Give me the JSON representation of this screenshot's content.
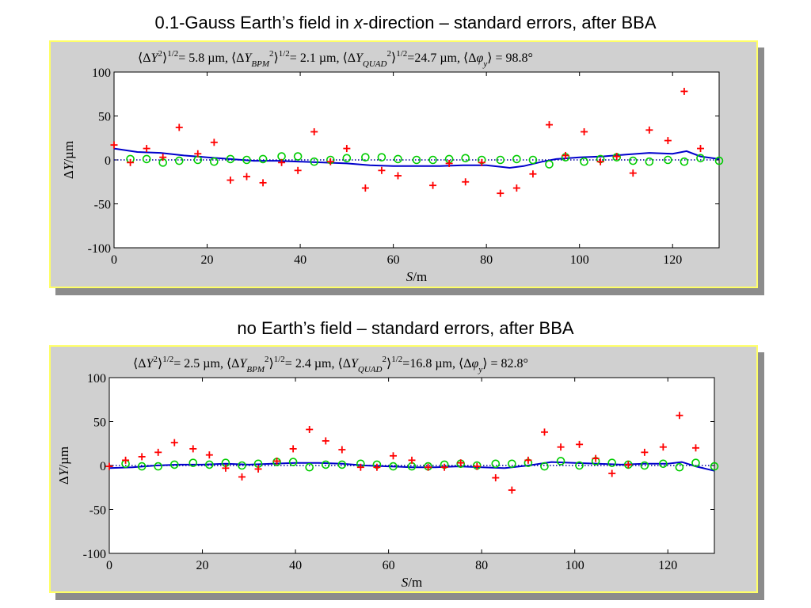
{
  "slide": {
    "title1": "0.1-Gauss Earth’s field in x-direction – standard errors, after BBA",
    "title2": "no Earth’s field – standard errors, after BBA"
  },
  "colors": {
    "line": "#0000cc",
    "cross": "#ff0000",
    "circle": "#00cc00",
    "reference": "#000099"
  },
  "chart_data": [
    {
      "type": "scatter",
      "header": {
        "dy": "⟨ΔY²⟩¹ᐟ²= 5.8 µm,",
        "bpm": "⟨ΔY_BPM²⟩¹ᐟ²= 2.1 µm,",
        "quad": "⟨ΔY_QUAD²⟩¹ᐟ²=24.7 µm,",
        "phi": "⟨Δφ_y⟩ =   98.8°"
      },
      "xlabel": "S/m",
      "ylabel": "ΔY/µm",
      "xlim": [
        0,
        130
      ],
      "ylim": [
        -100,
        100
      ],
      "xticks": [
        0,
        20,
        40,
        60,
        80,
        100,
        120
      ],
      "yticks": [
        100,
        50,
        0,
        -50,
        -100
      ],
      "grid": false,
      "crosses": [
        [
          0,
          17
        ],
        [
          3.5,
          -3
        ],
        [
          7,
          13
        ],
        [
          10.5,
          3
        ],
        [
          14,
          37
        ],
        [
          18,
          7
        ],
        [
          21.5,
          20
        ],
        [
          25,
          -23
        ],
        [
          28.5,
          -19
        ],
        [
          32,
          -26
        ],
        [
          36,
          -3
        ],
        [
          39.5,
          -12
        ],
        [
          43,
          32
        ],
        [
          46.5,
          -2
        ],
        [
          50,
          13
        ],
        [
          54,
          -32
        ],
        [
          57.5,
          -12
        ],
        [
          61,
          -18
        ],
        [
          68.5,
          -29
        ],
        [
          72,
          -4
        ],
        [
          75.5,
          -25
        ],
        [
          79,
          -3
        ],
        [
          83,
          -38
        ],
        [
          86.5,
          -32
        ],
        [
          90,
          -16
        ],
        [
          93.5,
          40
        ],
        [
          97,
          5
        ],
        [
          101,
          32
        ],
        [
          104.5,
          -2
        ],
        [
          108,
          4
        ],
        [
          111.5,
          -15
        ],
        [
          115,
          34
        ],
        [
          119,
          22
        ],
        [
          122.5,
          78
        ],
        [
          126,
          13
        ]
      ],
      "circles": [
        [
          3.5,
          1
        ],
        [
          7,
          1
        ],
        [
          10.5,
          -3
        ],
        [
          14,
          -1
        ],
        [
          18,
          0
        ],
        [
          21.5,
          -2
        ],
        [
          25,
          1
        ],
        [
          28.5,
          0
        ],
        [
          32,
          1
        ],
        [
          36,
          4
        ],
        [
          39.5,
          4
        ],
        [
          43,
          -2
        ],
        [
          46.5,
          0
        ],
        [
          50,
          2
        ],
        [
          54,
          3
        ],
        [
          57.5,
          3
        ],
        [
          61,
          1
        ],
        [
          65,
          0
        ],
        [
          68.5,
          0
        ],
        [
          72,
          1
        ],
        [
          75.5,
          2
        ],
        [
          79,
          0
        ],
        [
          83,
          0
        ],
        [
          86.5,
          1
        ],
        [
          90,
          0
        ],
        [
          93.5,
          -5
        ],
        [
          97,
          3
        ],
        [
          101,
          -2
        ],
        [
          104.5,
          1
        ],
        [
          108,
          3
        ],
        [
          111.5,
          -1
        ],
        [
          115,
          -2
        ],
        [
          119,
          0
        ],
        [
          122.5,
          -2
        ],
        [
          126,
          2
        ],
        [
          130,
          -1
        ]
      ],
      "line": [
        [
          0,
          13
        ],
        [
          5,
          9
        ],
        [
          10,
          8
        ],
        [
          15,
          5
        ],
        [
          20,
          3
        ],
        [
          25,
          1
        ],
        [
          30,
          -1
        ],
        [
          35,
          -1
        ],
        [
          40,
          -2
        ],
        [
          45,
          -3
        ],
        [
          50,
          -4
        ],
        [
          55,
          -6
        ],
        [
          60,
          -7
        ],
        [
          65,
          -7
        ],
        [
          70,
          -7
        ],
        [
          75,
          -6
        ],
        [
          80,
          -6
        ],
        [
          85,
          -9
        ],
        [
          88,
          -7
        ],
        [
          92,
          -2
        ],
        [
          95,
          1
        ],
        [
          100,
          3
        ],
        [
          105,
          4
        ],
        [
          110,
          6
        ],
        [
          115,
          8
        ],
        [
          120,
          7
        ],
        [
          123,
          10
        ],
        [
          126,
          4
        ],
        [
          130,
          1
        ]
      ]
    },
    {
      "type": "scatter",
      "header": {
        "dy": "⟨ΔY²⟩¹ᐟ²= 2.5 µm,",
        "bpm": "⟨ΔY_BPM²⟩¹ᐟ²= 2.4 µm,",
        "quad": "⟨ΔY_QUAD²⟩¹ᐟ²=16.8 µm,",
        "phi": "⟨Δφ_y⟩ =   82.8°"
      },
      "xlabel": "S/m",
      "ylabel": "ΔY/µm",
      "xlim": [
        0,
        130
      ],
      "ylim": [
        -100,
        100
      ],
      "xticks": [
        0,
        20,
        40,
        60,
        80,
        100,
        120
      ],
      "yticks": [
        100,
        50,
        0,
        -50,
        -100
      ],
      "grid": false,
      "crosses": [
        [
          0,
          -1
        ],
        [
          3.5,
          6
        ],
        [
          7,
          10
        ],
        [
          10.5,
          15
        ],
        [
          14,
          26
        ],
        [
          18,
          19
        ],
        [
          21.5,
          12
        ],
        [
          25,
          -3
        ],
        [
          28.5,
          -13
        ],
        [
          32,
          -4
        ],
        [
          36,
          5
        ],
        [
          39.5,
          19
        ],
        [
          43,
          41
        ],
        [
          46.5,
          28
        ],
        [
          50,
          18
        ],
        [
          54,
          -2
        ],
        [
          57.5,
          -2
        ],
        [
          61,
          11
        ],
        [
          65,
          6
        ],
        [
          68.5,
          -2
        ],
        [
          72,
          -2
        ],
        [
          75.5,
          3
        ],
        [
          79,
          -1
        ],
        [
          83,
          -14
        ],
        [
          86.5,
          -28
        ],
        [
          90,
          6
        ],
        [
          93.5,
          38
        ],
        [
          97,
          21
        ],
        [
          101,
          24
        ],
        [
          104.5,
          8
        ],
        [
          108,
          -9
        ],
        [
          111.5,
          1
        ],
        [
          115,
          15
        ],
        [
          119,
          21
        ],
        [
          122.5,
          57
        ],
        [
          126,
          20
        ]
      ],
      "circles": [
        [
          3.5,
          2
        ],
        [
          7,
          -1
        ],
        [
          10.5,
          -1
        ],
        [
          14,
          1
        ],
        [
          18,
          3
        ],
        [
          21.5,
          1
        ],
        [
          25,
          3
        ],
        [
          28.5,
          0
        ],
        [
          32,
          2
        ],
        [
          36,
          4
        ],
        [
          39.5,
          4
        ],
        [
          43,
          -2
        ],
        [
          46.5,
          1
        ],
        [
          50,
          1
        ],
        [
          54,
          2
        ],
        [
          57.5,
          1
        ],
        [
          61,
          -1
        ],
        [
          65,
          -1
        ],
        [
          68.5,
          -1
        ],
        [
          72,
          1
        ],
        [
          75.5,
          2
        ],
        [
          79,
          0
        ],
        [
          83,
          2
        ],
        [
          86.5,
          2
        ],
        [
          90,
          3
        ],
        [
          93.5,
          -1
        ],
        [
          97,
          5
        ],
        [
          101,
          0
        ],
        [
          104.5,
          5
        ],
        [
          108,
          3
        ],
        [
          111.5,
          1
        ],
        [
          115,
          0
        ],
        [
          119,
          2
        ],
        [
          122.5,
          -2
        ],
        [
          126,
          3
        ],
        [
          130,
          -1
        ]
      ],
      "line": [
        [
          0,
          -3
        ],
        [
          5,
          -2
        ],
        [
          10,
          0
        ],
        [
          15,
          1
        ],
        [
          20,
          1
        ],
        [
          25,
          2
        ],
        [
          30,
          1
        ],
        [
          35,
          2
        ],
        [
          40,
          3
        ],
        [
          45,
          3
        ],
        [
          50,
          2
        ],
        [
          55,
          0
        ],
        [
          60,
          -1
        ],
        [
          65,
          -2
        ],
        [
          70,
          -2
        ],
        [
          75,
          -1
        ],
        [
          80,
          -2
        ],
        [
          85,
          -3
        ],
        [
          90,
          0
        ],
        [
          95,
          4
        ],
        [
          100,
          3
        ],
        [
          105,
          2
        ],
        [
          110,
          1
        ],
        [
          115,
          2
        ],
        [
          120,
          2
        ],
        [
          123,
          4
        ],
        [
          126,
          -1
        ],
        [
          130,
          -6
        ]
      ]
    }
  ]
}
